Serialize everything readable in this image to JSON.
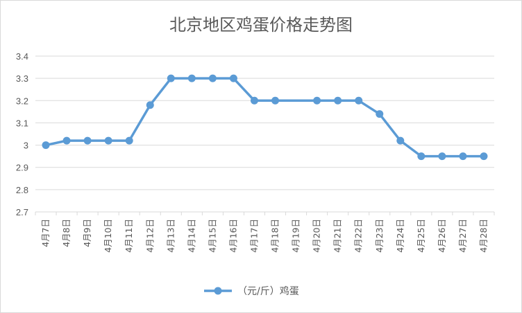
{
  "chart_data": {
    "type": "line",
    "title": "北京地区鸡蛋价格走势图",
    "xlabel": "",
    "ylabel": "",
    "ylim": [
      2.7,
      3.4
    ],
    "yticks": [
      "2.7",
      "2.8",
      "2.9",
      "3",
      "3.1",
      "3.2",
      "3.3",
      "3.4"
    ],
    "categories": [
      "4月7日",
      "4月8日",
      "4月9日",
      "4月10日",
      "4月11日",
      "4月12日",
      "4月13日",
      "4月14日",
      "4月15日",
      "4月16日",
      "4月17日",
      "4月18日",
      "4月19日",
      "4月20日",
      "4月21日",
      "4月22日",
      "4月23日",
      "4月24日",
      "4月25日",
      "4月26日",
      "4月27日",
      "4月28日"
    ],
    "series": [
      {
        "name": "（元/斤）鸡蛋",
        "color": "#5b9bd5",
        "points": [
          {
            "x": "4月7日",
            "y": 3.0
          },
          {
            "x": "4月8日",
            "y": 3.02
          },
          {
            "x": "4月9日",
            "y": 3.02
          },
          {
            "x": "4月10日",
            "y": 3.02
          },
          {
            "x": "4月11日",
            "y": 3.02
          },
          {
            "x": "4月12日",
            "y": 3.18
          },
          {
            "x": "4月13日",
            "y": 3.3
          },
          {
            "x": "4月14日",
            "y": 3.3
          },
          {
            "x": "4月15日",
            "y": 3.3
          },
          {
            "x": "4月16日",
            "y": 3.3
          },
          {
            "x": "4月17日",
            "y": 3.2
          },
          {
            "x": "4月18日",
            "y": 3.2
          },
          {
            "x": "4月20日",
            "y": 3.2
          },
          {
            "x": "4月21日",
            "y": 3.2
          },
          {
            "x": "4月22日",
            "y": 3.2
          },
          {
            "x": "4月23日",
            "y": 3.14
          },
          {
            "x": "4月24日",
            "y": 3.02
          },
          {
            "x": "4月25日",
            "y": 2.95
          },
          {
            "x": "4月26日",
            "y": 2.95
          },
          {
            "x": "4月27日",
            "y": 2.95
          },
          {
            "x": "4月28日",
            "y": 2.95
          }
        ]
      }
    ],
    "grid": true,
    "legend": "bottom",
    "gridColor": "#d9d9d9",
    "axisColor": "#d9d9d9",
    "textColor": "#595959"
  }
}
